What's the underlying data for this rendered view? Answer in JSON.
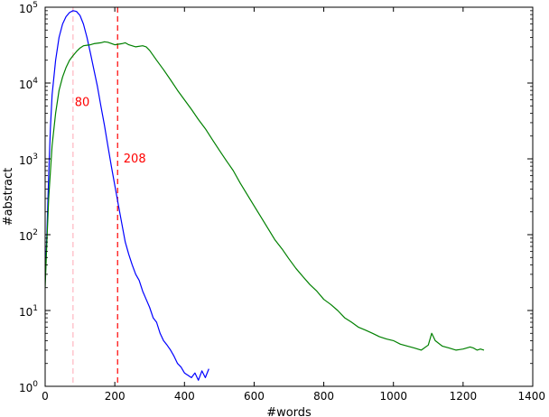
{
  "chart_data": {
    "type": "line",
    "title": "",
    "xlabel": "#words",
    "ylabel": "#abstract",
    "xlim": [
      0,
      1400
    ],
    "ylim": [
      1,
      100000
    ],
    "y_scale": "log",
    "grid": false,
    "x_ticks": [
      {
        "value": 0,
        "label": "0"
      },
      {
        "value": 200,
        "label": "200"
      },
      {
        "value": 400,
        "label": "400"
      },
      {
        "value": 600,
        "label": "600"
      },
      {
        "value": 800,
        "label": "800"
      },
      {
        "value": 1000,
        "label": "1000"
      },
      {
        "value": 1200,
        "label": "1200"
      },
      {
        "value": 1400,
        "label": "1400"
      }
    ],
    "y_ticks": [
      {
        "value": 1,
        "base": "10",
        "exp": "0"
      },
      {
        "value": 10,
        "base": "10",
        "exp": "1"
      },
      {
        "value": 100,
        "base": "10",
        "exp": "2"
      },
      {
        "value": 1000,
        "base": "10",
        "exp": "3"
      },
      {
        "value": 10000,
        "base": "10",
        "exp": "4"
      },
      {
        "value": 100000,
        "base": "10",
        "exp": "5"
      }
    ],
    "series": [
      {
        "color": "#0000ff",
        "points": [
          [
            0,
            25
          ],
          [
            5,
            100
          ],
          [
            10,
            600
          ],
          [
            15,
            2500
          ],
          [
            20,
            7000
          ],
          [
            30,
            20000
          ],
          [
            40,
            40000
          ],
          [
            50,
            60000
          ],
          [
            60,
            75000
          ],
          [
            70,
            85000
          ],
          [
            80,
            90000
          ],
          [
            90,
            88000
          ],
          [
            100,
            78000
          ],
          [
            110,
            60000
          ],
          [
            120,
            40000
          ],
          [
            130,
            25000
          ],
          [
            140,
            15000
          ],
          [
            150,
            9000
          ],
          [
            160,
            5000
          ],
          [
            170,
            2800
          ],
          [
            180,
            1500
          ],
          [
            190,
            800
          ],
          [
            200,
            450
          ],
          [
            210,
            250
          ],
          [
            220,
            140
          ],
          [
            230,
            80
          ],
          [
            240,
            55
          ],
          [
            250,
            40
          ],
          [
            260,
            30
          ],
          [
            270,
            25
          ],
          [
            280,
            18
          ],
          [
            290,
            14
          ],
          [
            300,
            11
          ],
          [
            310,
            8
          ],
          [
            320,
            7
          ],
          [
            330,
            5
          ],
          [
            340,
            4
          ],
          [
            350,
            3.5
          ],
          [
            360,
            3
          ],
          [
            370,
            2.5
          ],
          [
            380,
            2
          ],
          [
            390,
            1.8
          ],
          [
            400,
            1.5
          ],
          [
            410,
            1.4
          ],
          [
            420,
            1.3
          ],
          [
            430,
            1.5
          ],
          [
            440,
            1.2
          ],
          [
            450,
            1.6
          ],
          [
            460,
            1.3
          ],
          [
            470,
            1.7
          ]
        ]
      },
      {
        "color": "#008000",
        "points": [
          [
            0,
            20
          ],
          [
            5,
            80
          ],
          [
            10,
            300
          ],
          [
            20,
            1500
          ],
          [
            30,
            4000
          ],
          [
            40,
            8000
          ],
          [
            50,
            12000
          ],
          [
            60,
            16000
          ],
          [
            70,
            20000
          ],
          [
            80,
            23000
          ],
          [
            90,
            26000
          ],
          [
            100,
            29000
          ],
          [
            110,
            31000
          ],
          [
            120,
            31500
          ],
          [
            130,
            32000
          ],
          [
            140,
            33000
          ],
          [
            160,
            34000
          ],
          [
            170,
            35000
          ],
          [
            180,
            34500
          ],
          [
            200,
            32000
          ],
          [
            220,
            33000
          ],
          [
            230,
            34000
          ],
          [
            240,
            32000
          ],
          [
            260,
            30000
          ],
          [
            280,
            31000
          ],
          [
            290,
            30000
          ],
          [
            300,
            27000
          ],
          [
            320,
            20000
          ],
          [
            340,
            15000
          ],
          [
            360,
            11000
          ],
          [
            380,
            8000
          ],
          [
            400,
            6000
          ],
          [
            420,
            4500
          ],
          [
            440,
            3300
          ],
          [
            460,
            2500
          ],
          [
            480,
            1800
          ],
          [
            500,
            1300
          ],
          [
            520,
            950
          ],
          [
            540,
            700
          ],
          [
            560,
            480
          ],
          [
            580,
            340
          ],
          [
            600,
            240
          ],
          [
            620,
            170
          ],
          [
            640,
            120
          ],
          [
            660,
            85
          ],
          [
            680,
            65
          ],
          [
            700,
            48
          ],
          [
            720,
            36
          ],
          [
            740,
            28
          ],
          [
            760,
            22
          ],
          [
            780,
            18
          ],
          [
            800,
            14
          ],
          [
            820,
            12
          ],
          [
            840,
            10
          ],
          [
            860,
            8
          ],
          [
            880,
            7
          ],
          [
            900,
            6
          ],
          [
            920,
            5.5
          ],
          [
            940,
            5
          ],
          [
            960,
            4.5
          ],
          [
            980,
            4.2
          ],
          [
            1000,
            4
          ],
          [
            1020,
            3.6
          ],
          [
            1040,
            3.4
          ],
          [
            1060,
            3.2
          ],
          [
            1080,
            3.0
          ],
          [
            1100,
            3.5
          ],
          [
            1110,
            5
          ],
          [
            1120,
            4
          ],
          [
            1140,
            3.4
          ],
          [
            1160,
            3.2
          ],
          [
            1180,
            3.0
          ],
          [
            1200,
            3.1
          ],
          [
            1220,
            3.3
          ],
          [
            1230,
            3.2
          ],
          [
            1240,
            3.0
          ],
          [
            1250,
            3.1
          ],
          [
            1260,
            3.0
          ]
        ]
      }
    ],
    "vlines": [
      {
        "x": 80,
        "color": "#ffb6c1"
      },
      {
        "x": 208,
        "color": "#ff0000"
      }
    ],
    "annotations": [
      {
        "text": "80",
        "x": 85,
        "y": 5000,
        "color": "#ff0000"
      },
      {
        "text": "208",
        "x": 225,
        "y": 900,
        "color": "#ff0000"
      }
    ]
  }
}
